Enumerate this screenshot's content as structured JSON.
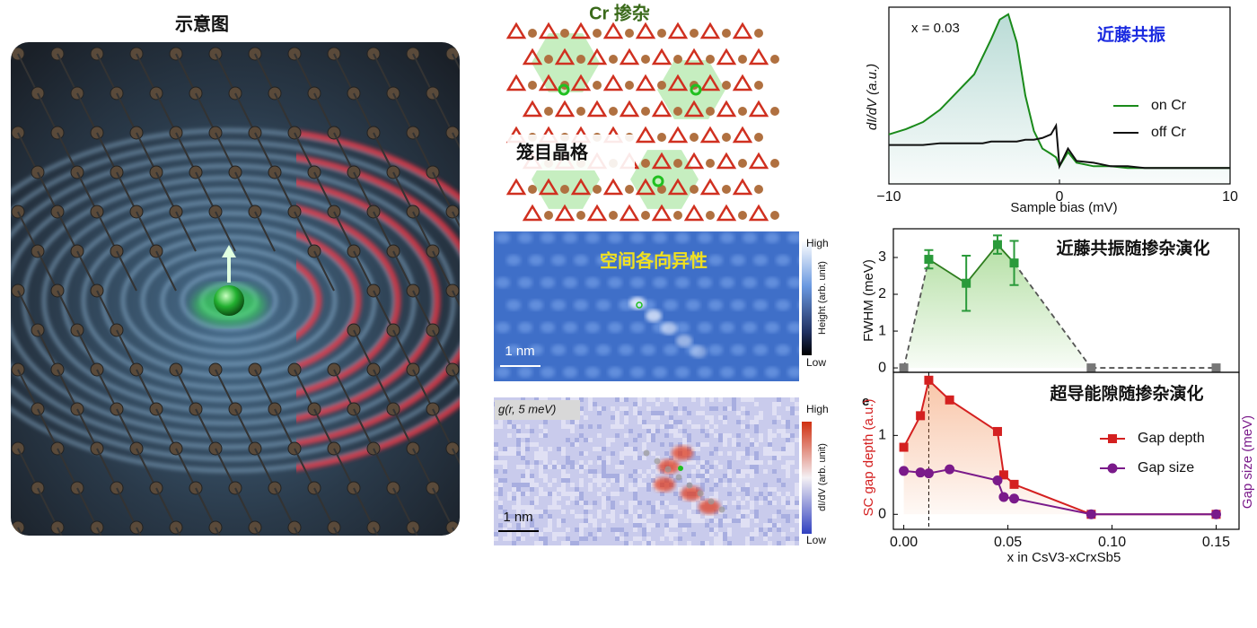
{
  "illustrations": {
    "schematic_title": "示意图",
    "lattice_title": "Cr 掺杂",
    "lattice_label": "笼目晶格",
    "topo_title": "空间各向异性",
    "topo_scale": "1 nm",
    "topo_high": "High",
    "topo_low": "Low",
    "topo_unit": "Height (arb. unit)",
    "g_title": "g(r, 5 meV)",
    "g_scale": "1 nm",
    "g_high": "High",
    "g_low": "Low",
    "g_unit": "dI/dV (arb. unit)"
  },
  "chart_data": [
    {
      "type": "line",
      "title": "近藤共振",
      "annotation": "x = 0.03",
      "xlabel": "Sample bias (mV)",
      "ylabel": "dI/dV (a.u.)",
      "x": [
        -10,
        -9,
        -8,
        -7,
        -6,
        -5,
        -4.5,
        -4,
        -3.5,
        -3,
        -2.5,
        -2,
        -1.5,
        -1,
        -0.5,
        -0.2,
        0,
        0.5,
        1,
        2,
        3,
        4,
        5,
        6,
        7,
        8,
        9,
        10
      ],
      "xlim": [
        -10,
        10
      ],
      "ylim": [
        0,
        1
      ],
      "xticks": [
        {
          "value": -10,
          "label": "−10"
        },
        0,
        10
      ],
      "series": [
        {
          "name": "on Cr",
          "color": "#1a8a1a",
          "area": true,
          "values": [
            0.28,
            0.31,
            0.35,
            0.42,
            0.52,
            0.62,
            0.72,
            0.82,
            0.93,
            0.96,
            0.8,
            0.5,
            0.3,
            0.2,
            0.17,
            0.15,
            0.1,
            0.18,
            0.12,
            0.1,
            0.1,
            0.09,
            0.09,
            0.09,
            0.09,
            0.09,
            0.09,
            0.09
          ]
        },
        {
          "name": "off Cr",
          "color": "#111111",
          "area": false,
          "values": [
            0.22,
            0.22,
            0.22,
            0.23,
            0.23,
            0.23,
            0.23,
            0.24,
            0.24,
            0.24,
            0.24,
            0.25,
            0.25,
            0.26,
            0.28,
            0.33,
            0.1,
            0.2,
            0.13,
            0.12,
            0.1,
            0.1,
            0.09,
            0.09,
            0.09,
            0.09,
            0.09,
            0.09
          ]
        }
      ]
    },
    {
      "type": "line",
      "title": "近藤共振随掺杂演化",
      "ylabel": "FWHM (meV)",
      "x": [
        0,
        0.012,
        0.03,
        0.045,
        0.053,
        0.09,
        0.15
      ],
      "xlim": [
        -0.005,
        0.161
      ],
      "ylim": [
        -0.12,
        3.78
      ],
      "yticks": [
        0,
        1,
        2,
        3
      ],
      "series": [
        {
          "color": "#2e7d1e",
          "area": true,
          "marker": "square",
          "marker_colors": [
            "#777777",
            "#2a9a3a",
            "#2a9a3a",
            "#2a9a3a",
            "#2a9a3a",
            "#777777",
            "#777777"
          ],
          "values": [
            0,
            2.95,
            2.3,
            3.35,
            2.85,
            0,
            0
          ],
          "errors": [
            null,
            0.25,
            0.75,
            0.25,
            0.6,
            null,
            null
          ]
        }
      ]
    },
    {
      "type": "line",
      "title": "超导能隙随掺杂演化",
      "panel_label": "e",
      "xlabel": "x in CsV3-xCrxSb5",
      "ylabel": "SC gap depth (a.u.)",
      "y2label": "Gap size (meV)",
      "x": [
        0,
        0.008,
        0.012,
        0.022,
        0.045,
        0.048,
        0.053,
        0.09,
        0.15
      ],
      "xlim": [
        -0.005,
        0.161
      ],
      "ylim": [
        -0.19,
        1.8
      ],
      "y2lim": [
        -0.19,
        1.8
      ],
      "xticks": [
        {
          "value": 0,
          "label": "0.00"
        },
        {
          "value": 0.05,
          "label": "0.05"
        },
        {
          "value": 0.1,
          "label": "0.10"
        },
        0.15
      ],
      "yticks": [
        0,
        1
      ],
      "vline_x": 0.012,
      "series": [
        {
          "name": "Gap depth",
          "color": "#d42020",
          "area": true,
          "marker": "square",
          "values": [
            0.85,
            1.25,
            1.7,
            1.45,
            1.05,
            0.5,
            0.38,
            0,
            0
          ]
        },
        {
          "name": "Gap size",
          "color": "#7a1a8a",
          "area": false,
          "marker": "circle",
          "axis": "y2",
          "values": [
            0.55,
            0.53,
            0.52,
            0.57,
            0.43,
            0.22,
            0.2,
            0,
            0
          ]
        }
      ]
    }
  ]
}
